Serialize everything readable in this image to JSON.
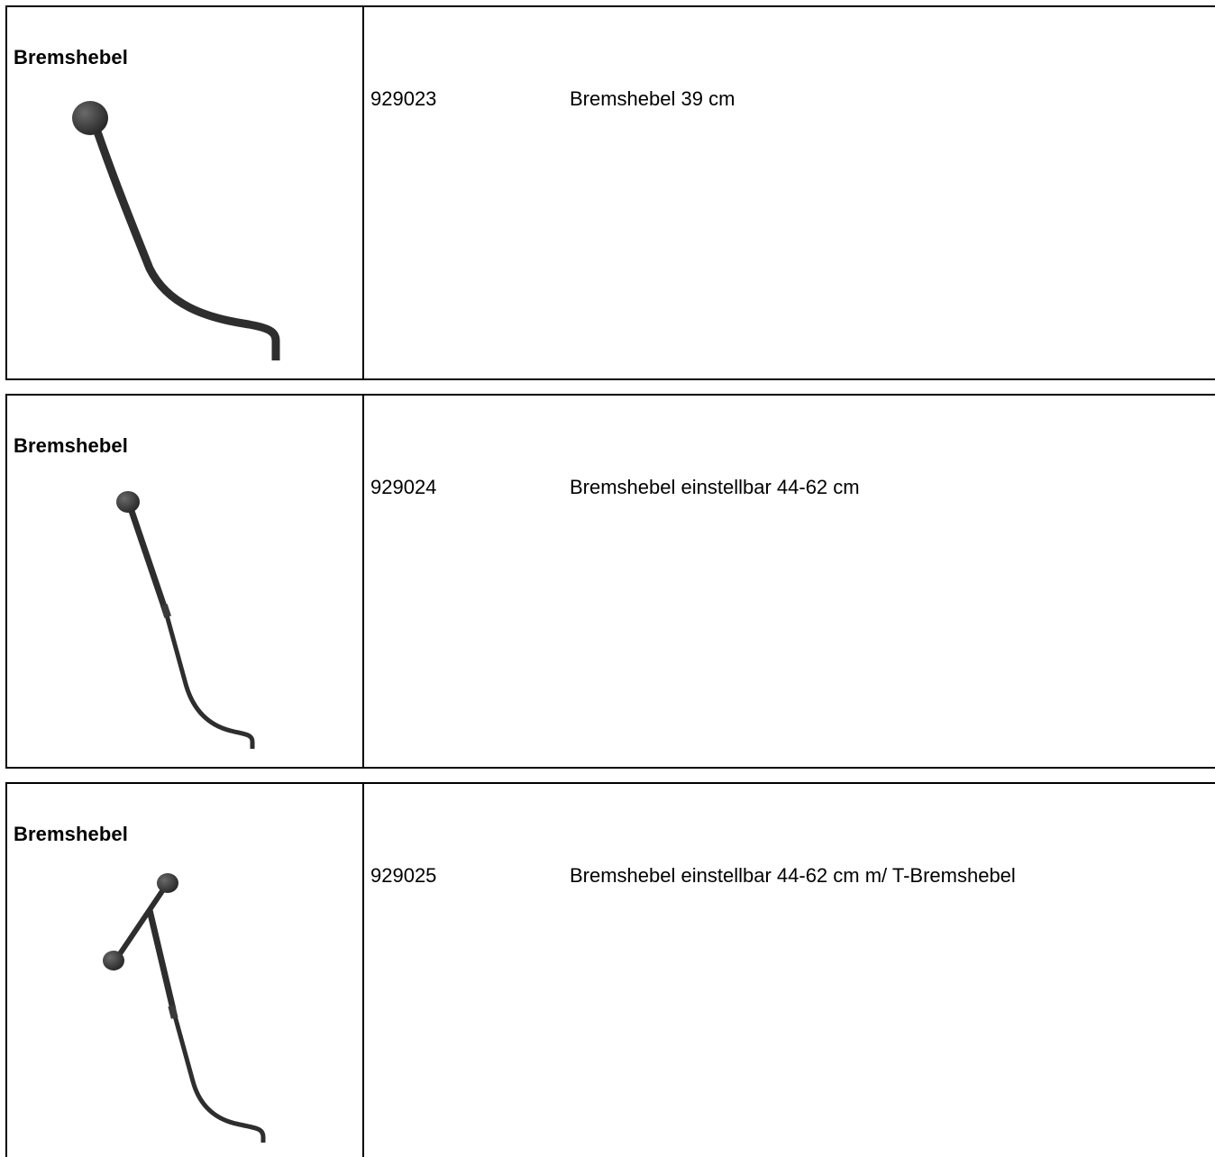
{
  "products": [
    {
      "category": "Bremshebel",
      "article_number": "929023",
      "description": "Bremshebel 39 cm",
      "image_icon": "brake-lever-curved"
    },
    {
      "category": "Bremshebel",
      "article_number": "929024",
      "description": "Bremshebel einstellbar 44-62 cm",
      "image_icon": "brake-lever-adjustable"
    },
    {
      "category": "Bremshebel",
      "article_number": "929025",
      "description": "Bremshebel einstellbar 44-62 cm m/ T-Bremshebel",
      "image_icon": "brake-lever-t-handle"
    }
  ],
  "colors": {
    "rule": "#000000",
    "lever": "#2e2e2e",
    "knob": "#3a3a3a"
  }
}
